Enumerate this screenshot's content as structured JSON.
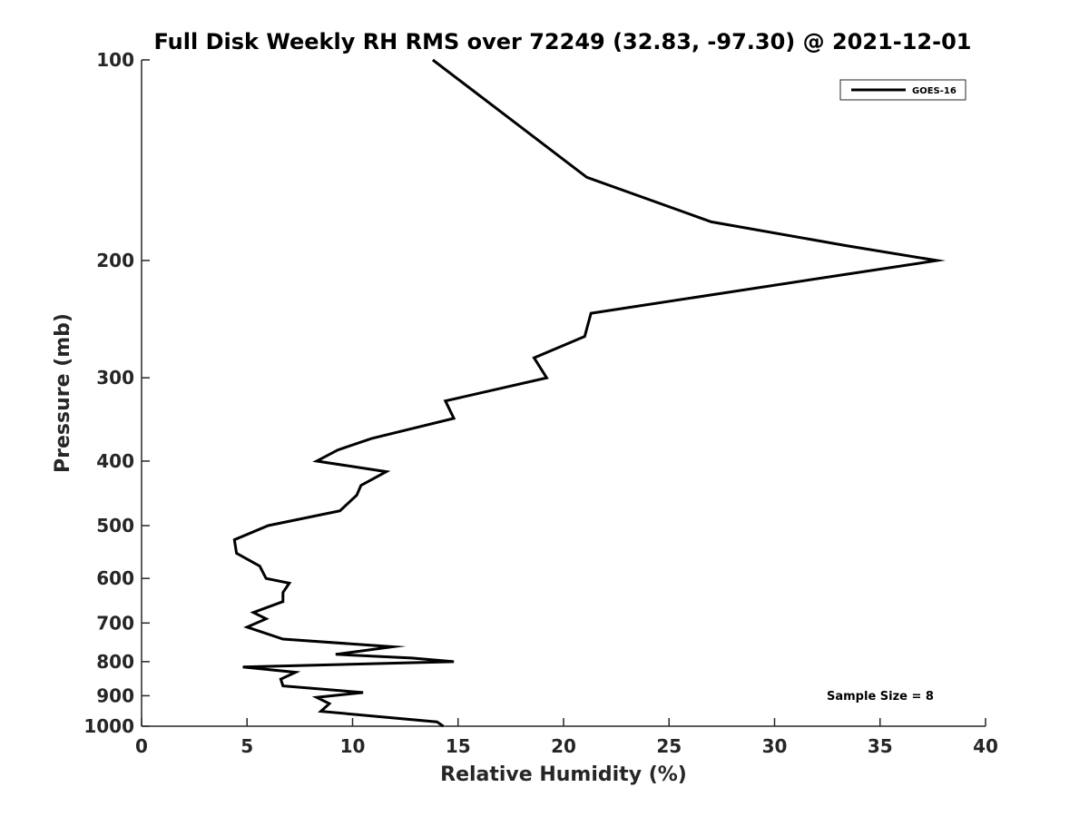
{
  "chart_data": {
    "type": "line",
    "title": "Full Disk Weekly RH RMS over 72249 (32.83, -97.30) @ 2021-12-01",
    "xlabel": "Relative Humidity (%)",
    "ylabel": "Pressure (mb)",
    "xlim": [
      0,
      40
    ],
    "ylim": [
      100,
      1000
    ],
    "yscale": "log",
    "y_reversed": true,
    "xticks": [
      "0",
      "5",
      "10",
      "15",
      "20",
      "25",
      "30",
      "35",
      "40"
    ],
    "yticks": [
      "100",
      "200",
      "300",
      "400",
      "500",
      "600",
      "700",
      "800",
      "900",
      "1000"
    ],
    "grid": false,
    "legend": {
      "placement": "top-right",
      "entries": [
        "GOES-16"
      ]
    },
    "annotation": "Sample Size = 8",
    "series": [
      {
        "name": "GOES-16",
        "color": "#000000",
        "points": [
          [
            13.8,
            100
          ],
          [
            21.1,
            150
          ],
          [
            27.0,
            175
          ],
          [
            33.4,
            190
          ],
          [
            37.7,
            200
          ],
          [
            33.3,
            210
          ],
          [
            27.1,
            225
          ],
          [
            21.3,
            240
          ],
          [
            21.0,
            260
          ],
          [
            18.6,
            280
          ],
          [
            19.2,
            300
          ],
          [
            14.4,
            325
          ],
          [
            14.8,
            345
          ],
          [
            10.9,
            370
          ],
          [
            9.3,
            385
          ],
          [
            8.3,
            400
          ],
          [
            11.6,
            415
          ],
          [
            10.4,
            435
          ],
          [
            10.2,
            450
          ],
          [
            9.4,
            475
          ],
          [
            6.0,
            500
          ],
          [
            4.4,
            525
          ],
          [
            4.5,
            550
          ],
          [
            5.6,
            575
          ],
          [
            5.9,
            600
          ],
          [
            7.0,
            610
          ],
          [
            6.7,
            630
          ],
          [
            6.7,
            650
          ],
          [
            5.3,
            675
          ],
          [
            5.9,
            690
          ],
          [
            5.0,
            710
          ],
          [
            6.7,
            740
          ],
          [
            11.9,
            760
          ],
          [
            9.2,
            780
          ],
          [
            12.8,
            790
          ],
          [
            14.8,
            800
          ],
          [
            4.8,
            815
          ],
          [
            7.3,
            830
          ],
          [
            6.6,
            850
          ],
          [
            6.7,
            870
          ],
          [
            10.5,
            890
          ],
          [
            8.3,
            905
          ],
          [
            8.9,
            925
          ],
          [
            8.5,
            950
          ],
          [
            14.0,
            985
          ],
          [
            14.3,
            1000
          ]
        ]
      }
    ]
  }
}
